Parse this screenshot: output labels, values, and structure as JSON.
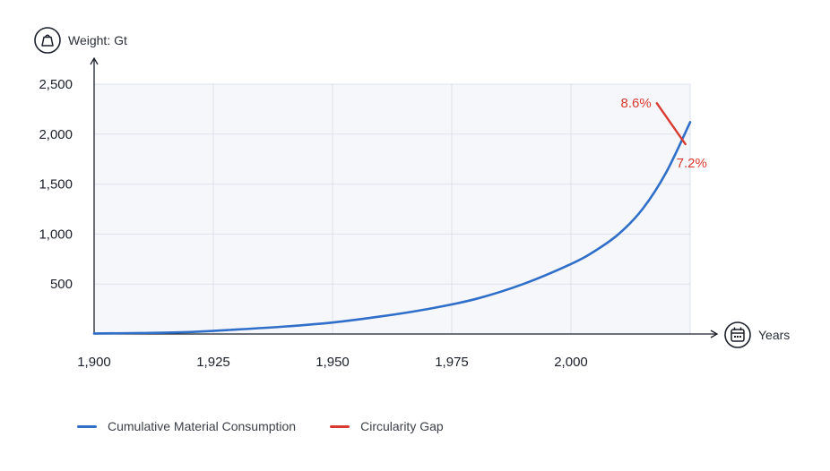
{
  "chart_data": {
    "type": "line",
    "ylabel": "Weight: Gt",
    "xlabel": "Years",
    "x_ticks": [
      "1,900",
      "1,925",
      "1,950",
      "1,975",
      "2,000"
    ],
    "y_ticks": [
      "500",
      "1,000",
      "1,500",
      "2,000",
      "2,500"
    ],
    "xlim": [
      1900,
      2025
    ],
    "ylim": [
      0,
      2500
    ],
    "grid": true,
    "legend_position": "bottom-left",
    "series": [
      {
        "name": "Cumulative Material Consumption",
        "color": "#2f6fc9",
        "x": [
          1900,
          1910,
          1920,
          1930,
          1940,
          1950,
          1960,
          1970,
          1980,
          1990,
          2000,
          2005,
          2010,
          2015,
          2020,
          2025
        ],
        "y": [
          5,
          10,
          20,
          45,
          75,
          115,
          175,
          250,
          350,
          500,
          700,
          830,
          1000,
          1250,
          1620,
          2120
        ]
      },
      {
        "name": "Circularity Gap",
        "color": "#d93a2f",
        "x": [
          2018,
          2024
        ],
        "y": [
          2310,
          1900
        ]
      }
    ],
    "annotations": [
      {
        "text": "8.6%",
        "x": 2018,
        "y": 2310,
        "color": "#d93a2f"
      },
      {
        "text": "7.2%",
        "x": 2024,
        "y": 1900,
        "color": "#d93a2f"
      }
    ]
  }
}
